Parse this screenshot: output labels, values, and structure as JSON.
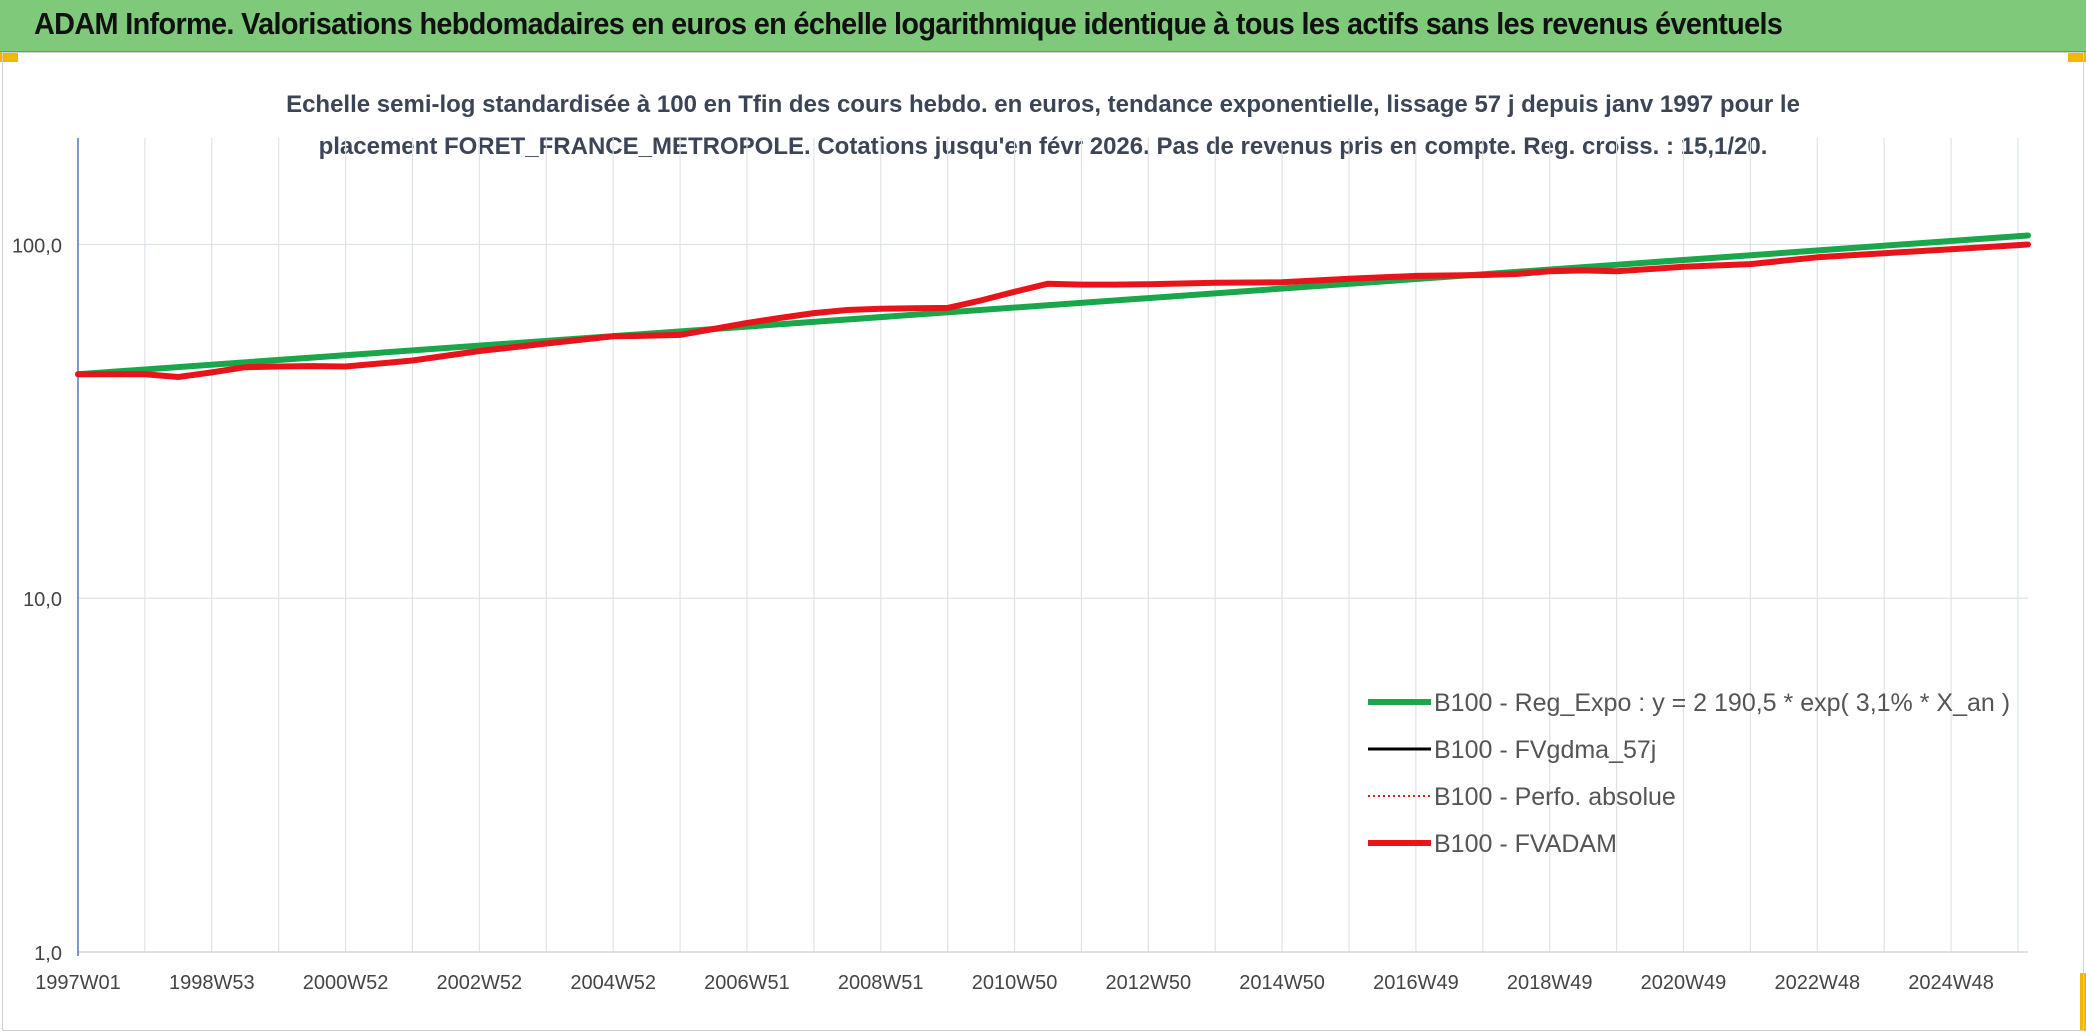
{
  "header": {
    "title": "ADAM Informe. Valorisations hebdomadaires en euros en échelle logarithmique identique à tous les actifs sans les revenus éventuels"
  },
  "colors": {
    "header_bg": "#7ec97a",
    "corner_accent": "#f2b705",
    "reg_expo": "#1aa64a",
    "fvgdma": "#000000",
    "perfo": "#d42020",
    "fvadam": "#e8141b",
    "grid": "#dfe3e8",
    "axis": "#5b7fb8",
    "title_text": "#3c4556"
  },
  "chart_data": {
    "type": "line",
    "title_lines": [
      "Echelle semi-log standardisée à 100 en Tfin des cours hebdo. en euros, tendance exponentielle, lissage 57 j depuis janv 1997 pour le",
      "placement FORET_FRANCE_METROPOLE. Cotations jusqu'en févr 2026. Pas de revenus pris en compte. Reg. croiss. : 15,1/20."
    ],
    "y_scale": "log",
    "ylim": [
      1,
      200
    ],
    "y_ticks": [
      {
        "value": 1,
        "label": "1,0"
      },
      {
        "value": 10,
        "label": "10,0"
      },
      {
        "value": 100,
        "label": "100,0"
      }
    ],
    "x_range": [
      1997.0,
      2026.15
    ],
    "x_ticks": [
      {
        "value": 1997.0,
        "label": "1997W01"
      },
      {
        "value": 1999.0,
        "label": "1998W53"
      },
      {
        "value": 2001.0,
        "label": "2000W52"
      },
      {
        "value": 2003.0,
        "label": "2002W52"
      },
      {
        "value": 2005.0,
        "label": "2004W52"
      },
      {
        "value": 2007.0,
        "label": "2006W51"
      },
      {
        "value": 2009.0,
        "label": "2008W51"
      },
      {
        "value": 2011.0,
        "label": "2010W50"
      },
      {
        "value": 2013.0,
        "label": "2012W50"
      },
      {
        "value": 2015.0,
        "label": "2014W50"
      },
      {
        "value": 2017.0,
        "label": "2016W49"
      },
      {
        "value": 2019.0,
        "label": "2018W49"
      },
      {
        "value": 2021.0,
        "label": "2020W49"
      },
      {
        "value": 2023.0,
        "label": "2022W48"
      },
      {
        "value": 2025.0,
        "label": "2024W48"
      }
    ],
    "x_minor_gridlines": [
      1998,
      2000,
      2002,
      2004,
      2006,
      2008,
      2010,
      2012,
      2014,
      2016,
      2018,
      2020,
      2022,
      2024,
      2026
    ],
    "grid": true,
    "legend_position": "bottom-right",
    "series": [
      {
        "name": "B100 - Reg_Expo : y = 2 190,5 * exp( 3,1% *  X_an )",
        "key": "reg_expo",
        "style": "solid-thick",
        "x": [
          1997.0,
          2026.15
        ],
        "y": [
          43.0,
          106.0
        ]
      },
      {
        "name": "B100 - FVgdma_57j",
        "key": "fvgdma",
        "style": "solid-thin",
        "x": [],
        "y": []
      },
      {
        "name": "B100 - Perfo. absolue",
        "key": "perfo",
        "style": "dotted",
        "x": [],
        "y": []
      },
      {
        "name": "B100 - FVADAM",
        "key": "fvadam",
        "style": "solid-thick",
        "x": [
          1997.0,
          1998.0,
          1998.5,
          1999.0,
          1999.5,
          2000.0,
          2000.5,
          2001.0,
          2002.0,
          2003.0,
          2004.0,
          2005.0,
          2005.5,
          2006.0,
          2007.0,
          2007.5,
          2008.0,
          2008.5,
          2009.0,
          2009.5,
          2010.0,
          2010.5,
          2011.0,
          2011.5,
          2012.0,
          2012.5,
          2013.0,
          2014.0,
          2015.0,
          2016.0,
          2017.0,
          2018.0,
          2018.5,
          2019.0,
          2019.5,
          2020.0,
          2021.0,
          2022.0,
          2023.0,
          2024.0,
          2025.0,
          2026.15
        ],
        "y": [
          43.0,
          43.0,
          42.2,
          43.5,
          45.0,
          45.2,
          45.3,
          45.2,
          47.0,
          50.0,
          52.5,
          55.0,
          55.2,
          55.5,
          60.0,
          62.0,
          64.0,
          65.3,
          65.8,
          66.0,
          66.2,
          69.5,
          73.5,
          77.5,
          77.0,
          77.0,
          77.2,
          78.0,
          78.2,
          80.0,
          81.5,
          82.0,
          82.5,
          84.0,
          84.5,
          84.0,
          86.5,
          88.0,
          92.0,
          94.5,
          97.0,
          100.0
        ]
      }
    ]
  }
}
